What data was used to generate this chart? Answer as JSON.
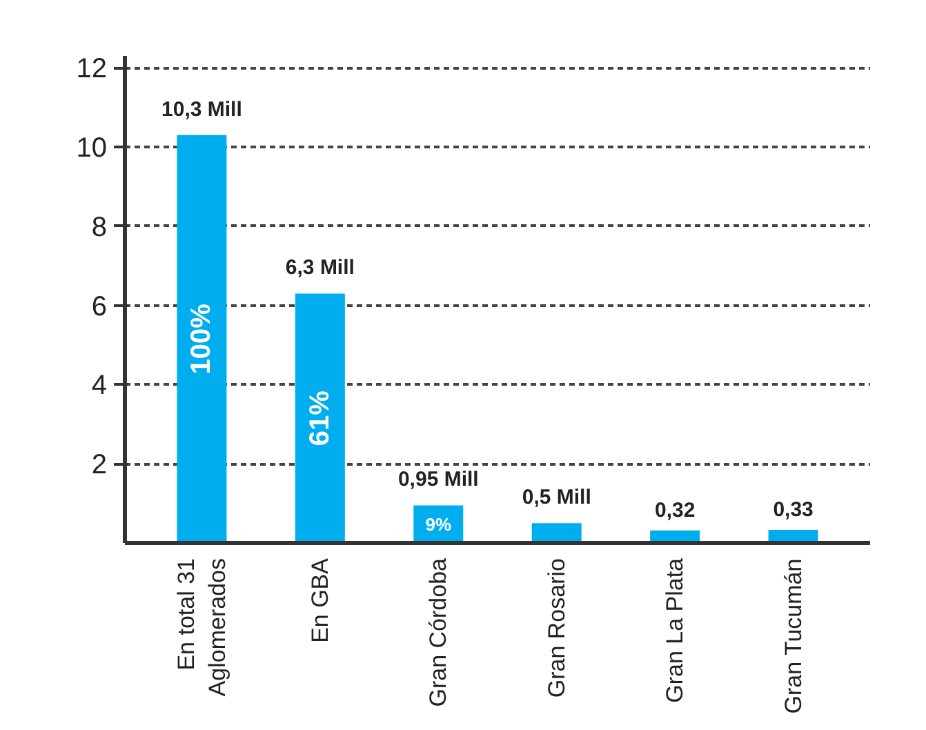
{
  "chart_data": {
    "type": "bar",
    "categories": [
      "En total 31\nAglomerados",
      "En GBA",
      "Gran Córdoba",
      "Gran Rosario",
      "Gran La Plata",
      "Gran Tucumán"
    ],
    "values": [
      10.3,
      6.3,
      0.95,
      0.5,
      0.32,
      0.33
    ],
    "value_labels": [
      "10,3 Mill",
      "6,3 Mill",
      "0,95 Mill",
      "0,5 Mill",
      "0,32",
      "0,33"
    ],
    "color": "#00aeef",
    "ylim": [
      0,
      12.3
    ],
    "yticks": [
      2,
      4,
      6,
      8,
      10,
      12
    ],
    "grid": "y",
    "annotations": [
      "100%",
      "61%",
      "9%"
    ]
  }
}
